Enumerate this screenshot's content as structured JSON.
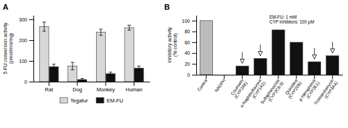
{
  "chart_data": [
    {
      "type": "bar",
      "title": "A",
      "categories": [
        "Rat",
        "Dog",
        "Monkey",
        "Human"
      ],
      "series": [
        {
          "name": "Tegafur",
          "color": "#d8d8d8",
          "values": [
            265,
            75,
            238,
            260
          ],
          "errors": [
            22,
            18,
            15,
            12
          ]
        },
        {
          "name": "EM-FU",
          "color": "#111111",
          "values": [
            72,
            10,
            38,
            65
          ],
          "errors": [
            12,
            5,
            8,
            10
          ]
        }
      ],
      "ylabel": "5-FU conversion activity\n(pmol/min/mg)",
      "ylim": [
        0,
        320
      ],
      "yticks": [
        0,
        100,
        200,
        300
      ],
      "legend": "bottom"
    },
    {
      "type": "bar",
      "title": "B",
      "categories": [
        "Control",
        "NADPH",
        "Coumarin\n(CYP2A6)",
        "α-Naphthoflavone\n(CYP1A2)",
        "Sulfaphenazole\n(CYP2C8,9)",
        "Quinidine\n(CYP2D6)",
        "p-Nitrophenol\n(CYP2E1)",
        "Troleandomycin\n(CYP3A4)"
      ],
      "values": [
        100,
        0,
        16,
        30,
        83,
        60,
        24,
        35
      ],
      "colors": [
        "#bbbbbb",
        "#111111",
        "#111111",
        "#111111",
        "#111111",
        "#111111",
        "#111111",
        "#111111"
      ],
      "arrows": [
        false,
        false,
        true,
        true,
        false,
        false,
        true,
        true
      ],
      "ylabel": "Inhibitory activity\n(% control)",
      "ylim": [
        0,
        110
      ],
      "yticks": [
        0,
        20,
        40,
        60,
        80,
        100
      ],
      "annotation": "EM-FU: 1 mM\nCYP inhibitors: 100 μM"
    }
  ]
}
